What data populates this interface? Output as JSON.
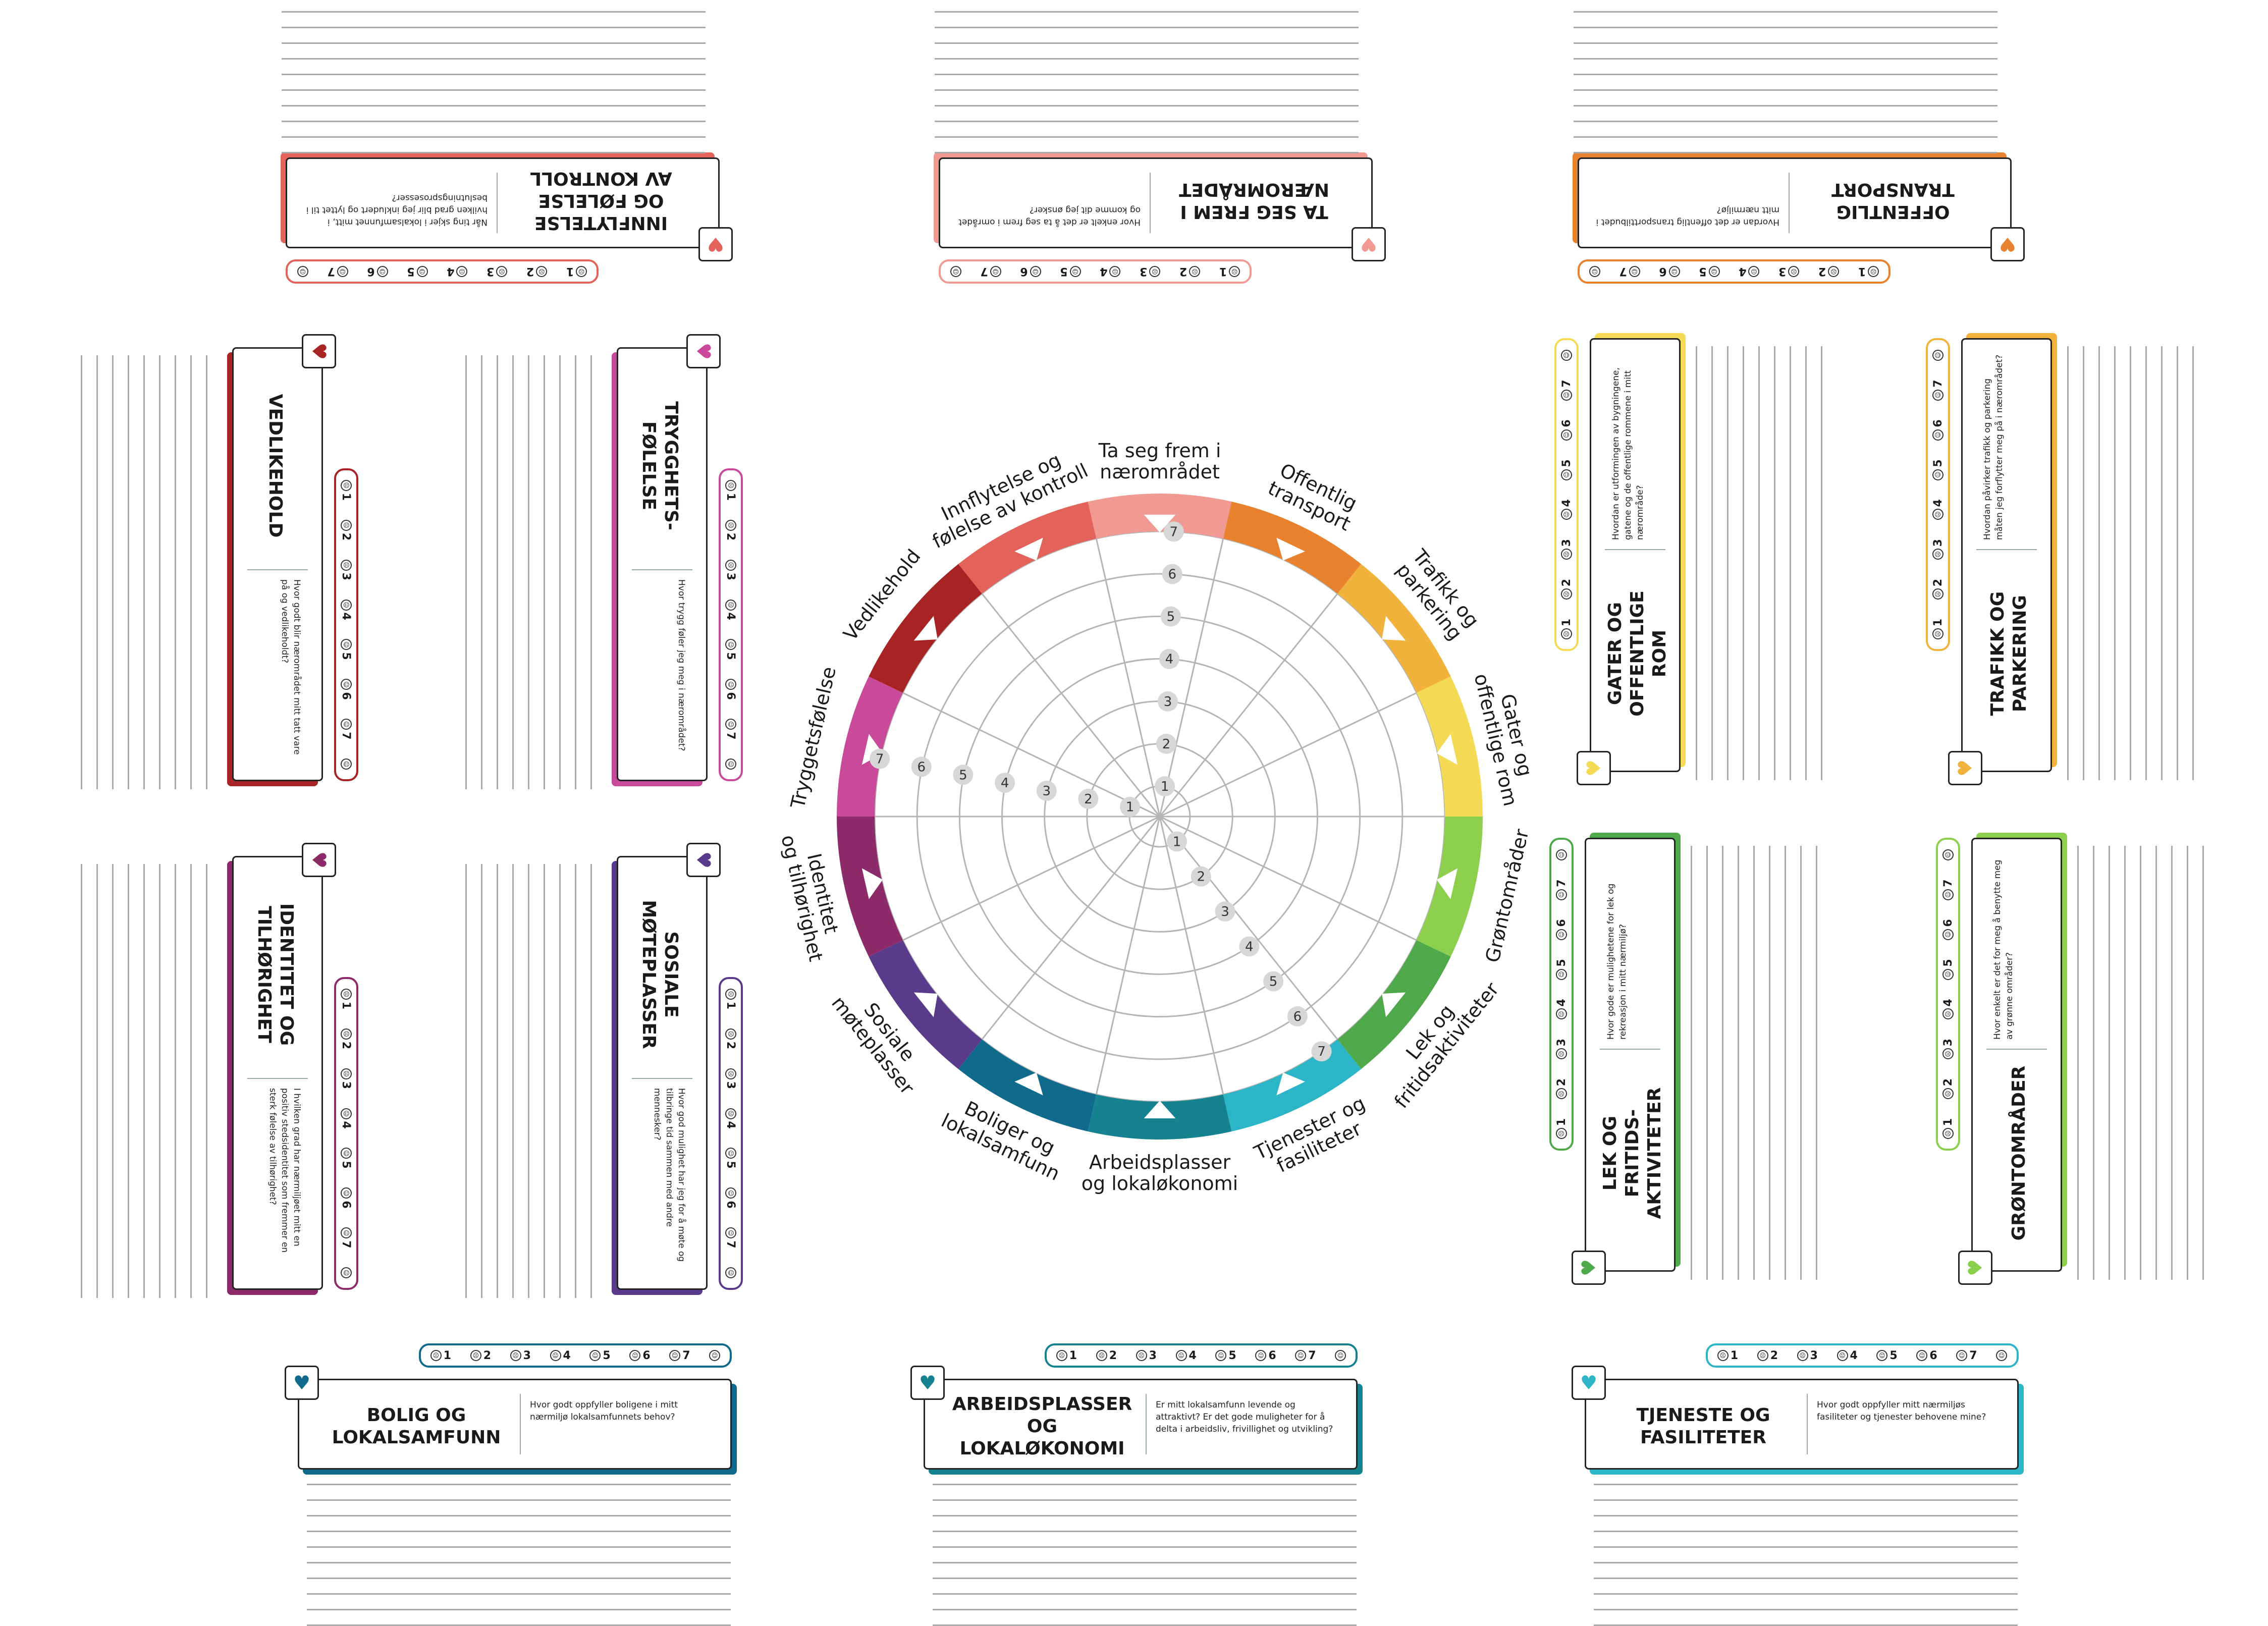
{
  "wheel": {
    "segments": [
      {
        "label": "Ta seg frem i\nnærområdet",
        "color": "#f19a93"
      },
      {
        "label": "Offentlig\ntransport",
        "color": "#e8822e"
      },
      {
        "label": "Trafikk og\nparkering",
        "color": "#f2b33d"
      },
      {
        "label": "Gater og\noffentlige rom",
        "color": "#f5db55"
      },
      {
        "label": "Grøntområder",
        "color": "#8ccf4d"
      },
      {
        "label": "Lek og\nfritidsaktiviteter",
        "color": "#4fa84a"
      },
      {
        "label": "Tjenester og\nfasiliteter",
        "color": "#2bb5c6"
      },
      {
        "label": "Arbeidsplasser\nog lokaløkonomi",
        "color": "#14838f"
      },
      {
        "label": "Boliger og\nlokalsamfunn",
        "color": "#0f6a8c"
      },
      {
        "label": "Sosiale\nmøteplasser",
        "color": "#5a3a8a"
      },
      {
        "label": "Identitet\nog tilhørighet",
        "color": "#8c2a6a"
      },
      {
        "label": "Tryggetsfølelse",
        "color": "#c94a9a"
      },
      {
        "label": "Vedlikehold",
        "color": "#a82424"
      },
      {
        "label": "Innflytelse og\nfølelse av kontroll",
        "color": "#e3625a"
      }
    ],
    "scale_values": [
      "1",
      "2",
      "3",
      "4",
      "5",
      "6",
      "7"
    ]
  },
  "scale": [
    "1",
    "2",
    "3",
    "4",
    "5",
    "6",
    "7"
  ],
  "cards": [
    {
      "id": "innflytelse",
      "title": "INNFLYTELSE\nOG FØLELSE\nAV KONTROLL",
      "question": "Når ting skjer i lokalsamfunnet mitt, i hvilken grad blir jeg inkludert og lyttet til i beslutningsprosesser?",
      "color": "#e3625a"
    },
    {
      "id": "ta-seg-frem",
      "title": "TA SEG FREM I\nNÆROMRÅDET",
      "question": "Hvor enkelt er det å ta seg frem i området og komme dit jeg ønsker?",
      "color": "#f19a93"
    },
    {
      "id": "offentlig-transport",
      "title": "OFFENTLIG\nTRANSPORT",
      "question": "Hvordan er det offentlig transporttilbudet i mitt nærmiljø?",
      "color": "#e8822e"
    },
    {
      "id": "vedlikehold",
      "title": "VEDLIKEHOLD",
      "question": "Hvor godt blir nærområdet mitt tatt vare på og vedlikeholdt?",
      "color": "#a82424"
    },
    {
      "id": "trygghet",
      "title": "TRYGGHETS-\nFØLELSE",
      "question": "Hvor trygg føler jeg meg i nærområdet?",
      "color": "#c94a9a"
    },
    {
      "id": "gater",
      "title": "GATER OG\nOFFENTLIGE\nROM",
      "question": "Hvordan er utformingen av bygningene, gatene og de offentlige rommene i mitt nærområde?",
      "color": "#f5db55"
    },
    {
      "id": "trafikk",
      "title": "TRAFIKK OG\nPARKERING",
      "question": "Hvordan påvirker trafikk og parkering måten jeg forflytter meg på i nærområdet?",
      "color": "#f2b33d"
    },
    {
      "id": "identitet",
      "title": "IDENTITET OG\nTILHØRIGHET",
      "question": "I hvilken grad har nærmiljøet mitt en positiv stedsidentitet som fremmer en sterk følelse av tilhørighet?",
      "color": "#8c2a6a"
    },
    {
      "id": "sosiale",
      "title": "SOSIALE\nMØTEPLASSER",
      "question": "Hvor god mulighet har jeg for å møte og tilbringe tid sammen med andre mennesker?",
      "color": "#5a3a8a"
    },
    {
      "id": "lek",
      "title": "LEK OG\nFRITIDS-\nAKTIVITETER",
      "question": "Hvor gode er mulighetene for lek og rekreasjon i mitt nærmiljø?",
      "color": "#4fa84a"
    },
    {
      "id": "gront",
      "title": "GRØNTOMRÅDER",
      "question": "Hvor enkelt er det for meg å benytte meg av grønne områder?",
      "color": "#8ccf4d"
    },
    {
      "id": "bolig",
      "title": "BOLIG OG\nLOKALSAMFUNN",
      "question": "Hvor godt oppfyller boligene i mitt nærmiljø lokalsamfunnets behov?",
      "color": "#0f6a8c"
    },
    {
      "id": "arbeid",
      "title": "ARBEIDSPLASSER\nOG\nLOKALØKONOMI",
      "question": "Er mitt lokalsamfunn levende og attraktivt? Er det gode muligheter for å delta i arbeidsliv, frivillighet og utvikling?",
      "color": "#14838f"
    },
    {
      "id": "tjeneste",
      "title": "TJENESTE OG\nFASILITETER",
      "question": "Hvor godt oppfyller mitt nærmiljøs fasiliteter og tjenester behovene mine?",
      "color": "#2bb5c6"
    }
  ]
}
